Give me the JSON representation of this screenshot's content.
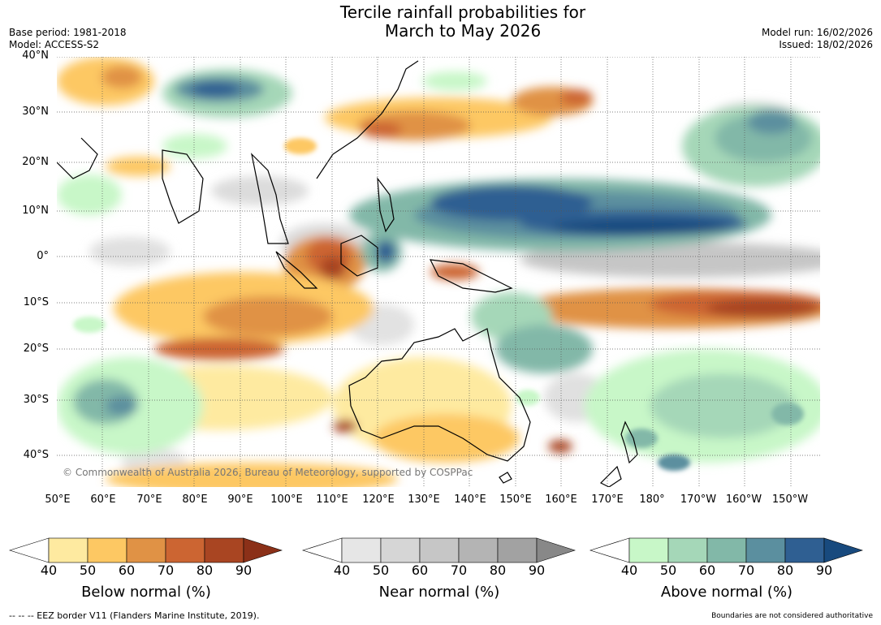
{
  "title": {
    "line1": "Tercile rainfall probabilities for",
    "line2": "March to May 2026"
  },
  "meta_left": {
    "base_period": "Base period: 1981-2018",
    "model": "Model: ACCESS-S2"
  },
  "meta_right": {
    "model_run": "Model run: 16/02/2026",
    "issued": "Issued: 18/02/2026"
  },
  "copyright": "© Commonwealth of Australia 2026, Bureau of Meteorology, supported by COSPPac",
  "lat_labels": [
    "40°N",
    "30°N",
    "20°N",
    "10°N",
    "0°",
    "10°S",
    "20°S",
    "30°S",
    "40°S"
  ],
  "lon_labels": [
    "50°E",
    "60°E",
    "70°E",
    "80°E",
    "90°E",
    "100°E",
    "110°E",
    "120°E",
    "130°E",
    "140°E",
    "150°E",
    "160°E",
    "170°E",
    "180°",
    "170°W",
    "160°W",
    "150°W"
  ],
  "colorbars": [
    {
      "title": "Below normal (%)",
      "ticks": [
        "40",
        "50",
        "60",
        "70",
        "80",
        "90"
      ],
      "colors": [
        "#ffffff",
        "#feeaa0",
        "#fdc863",
        "#e09245",
        "#cc6532",
        "#a94522",
        "#8b3018"
      ]
    },
    {
      "title": "Near normal (%)",
      "ticks": [
        "40",
        "50",
        "60",
        "70",
        "80",
        "90"
      ],
      "colors": [
        "#ffffff",
        "#e6e6e6",
        "#d6d6d6",
        "#c6c6c6",
        "#b4b4b4",
        "#a2a2a2",
        "#888888"
      ]
    },
    {
      "title": "Above normal (%)",
      "ticks": [
        "40",
        "50",
        "60",
        "70",
        "80",
        "90"
      ],
      "colors": [
        "#ffffff",
        "#c8f7c8",
        "#a5d7b8",
        "#82b8a8",
        "#5b8f9f",
        "#2f5f92",
        "#184a7e"
      ]
    }
  ],
  "footer_left": "--  --  -- EEZ border V11 (Flanders Marine Institute, 2019).",
  "footer_right": "Boundaries are not considered authoritative"
}
